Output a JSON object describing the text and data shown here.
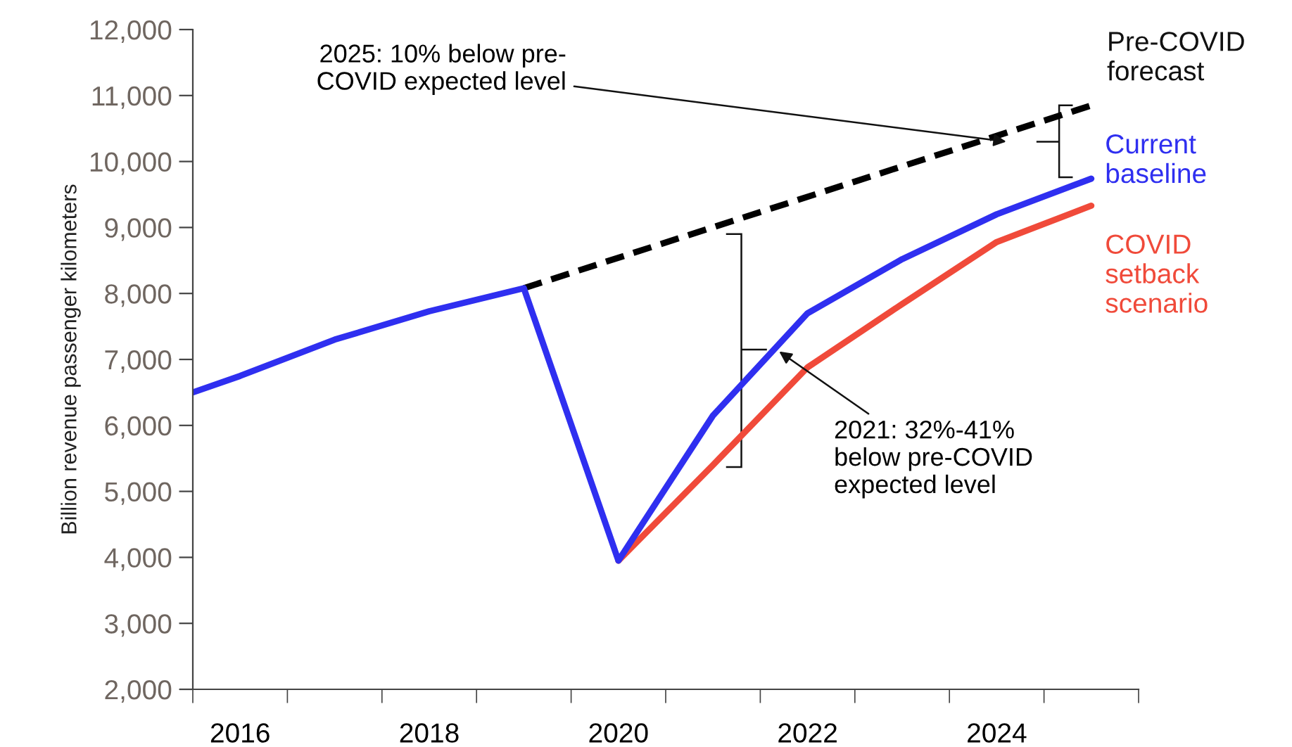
{
  "chart_data": {
    "type": "line",
    "ylabel": "Billion revenue passenger kilometers",
    "series": [
      {
        "name": "Pre-COVID forecast",
        "color": "#000000",
        "line_style": "dashed",
        "x": [
          2019,
          2025
        ],
        "values": [
          8080,
          10850
        ]
      },
      {
        "name": "COVID setback scenario",
        "color": "#f04a3a",
        "x": [
          2020,
          2021,
          2022,
          2023,
          2024,
          2025
        ],
        "values": [
          3950,
          5400,
          6880,
          7840,
          8780,
          9330
        ]
      },
      {
        "name": "Current baseline",
        "color": "#2f2ff0",
        "x": [
          2015.5,
          2016,
          2017,
          2018,
          2019,
          2020,
          2021,
          2022,
          2023,
          2024,
          2025
        ],
        "values": [
          6500,
          6750,
          7300,
          7730,
          8080,
          3950,
          6150,
          7700,
          8520,
          9200,
          9740
        ]
      }
    ],
    "xlim": [
      2015.5,
      2025.5
    ],
    "xticks": [
      {
        "value": 2015.5,
        "label": null
      },
      {
        "value": 2016,
        "label": "2016"
      },
      {
        "value": 2016.5,
        "label": null
      },
      {
        "value": 2017.5,
        "label": null
      },
      {
        "value": 2018,
        "label": "2018"
      },
      {
        "value": 2018.5,
        "label": null
      },
      {
        "value": 2019.5,
        "label": null
      },
      {
        "value": 2020,
        "label": "2020"
      },
      {
        "value": 2020.5,
        "label": null
      },
      {
        "value": 2021.5,
        "label": null
      },
      {
        "value": 2022,
        "label": "2022"
      },
      {
        "value": 2022.5,
        "label": null
      },
      {
        "value": 2023.5,
        "label": null
      },
      {
        "value": 2024,
        "label": "2024"
      },
      {
        "value": 2024.5,
        "label": null
      },
      {
        "value": 2025.5,
        "label": null
      }
    ],
    "ylim": [
      2000,
      12000
    ],
    "yticks": [
      {
        "value": 2000,
        "label": "2,000"
      },
      {
        "value": 3000,
        "label": "3,000"
      },
      {
        "value": 4000,
        "label": "4,000"
      },
      {
        "value": 5000,
        "label": "5,000"
      },
      {
        "value": 6000,
        "label": "6,000"
      },
      {
        "value": 7000,
        "label": "7,000"
      },
      {
        "value": 8000,
        "label": "8,000"
      },
      {
        "value": 9000,
        "label": "9,000"
      },
      {
        "value": 10000,
        "label": "10,000"
      },
      {
        "value": 11000,
        "label": "11,000"
      },
      {
        "value": 12000,
        "label": "12,000"
      }
    ],
    "grid": false,
    "legend": false,
    "marker": "none",
    "annotations": [
      {
        "text": "2025: 10% below pre-\nCOVID expected level",
        "x": 2024.1,
        "y": 10300
      },
      {
        "text": "2021: 32%-41%\nbelow pre-COVID\nexpected level",
        "x": 2021.7,
        "y": 7120
      }
    ]
  }
}
